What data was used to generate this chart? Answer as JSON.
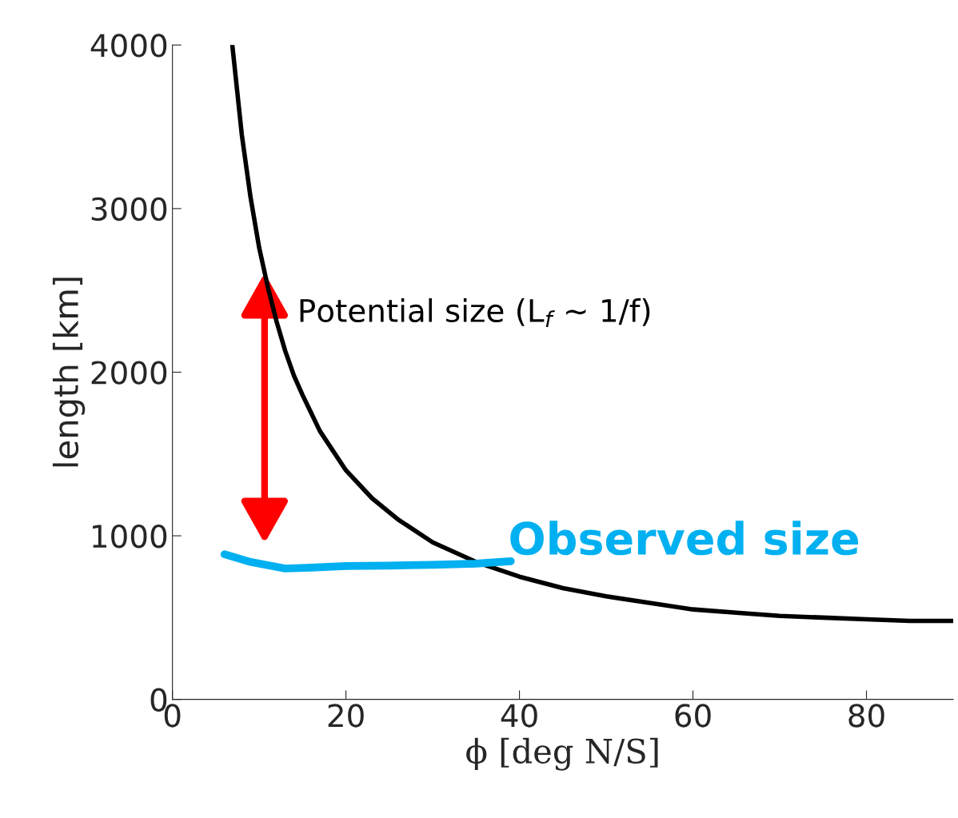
{
  "chart_data": {
    "type": "line",
    "xlabel": "ϕ [deg N/S]",
    "ylabel": "length [km]",
    "xlim": [
      0,
      90
    ],
    "xticks": [
      0,
      20,
      40,
      60,
      80
    ],
    "ylim": [
      0,
      4000
    ],
    "yticks": [
      0,
      1000,
      2000,
      3000,
      4000
    ],
    "grid": false,
    "legend": false,
    "marker": "none",
    "line_style": "solid",
    "series": [
      {
        "name": "Potential size (L$_{f}$ ∼ 1/f)",
        "color": "#000000",
        "x": [
          6.9,
          8,
          9,
          10,
          11,
          12,
          13,
          14,
          15,
          17,
          20,
          23,
          26,
          30,
          35,
          40,
          45,
          50,
          55,
          60,
          65,
          70,
          75,
          80,
          85,
          90
        ],
        "values": [
          4000,
          3450,
          3070,
          2760,
          2520,
          2310,
          2130,
          1980,
          1860,
          1640,
          1400,
          1230,
          1100,
          960,
          840,
          750,
          680,
          630,
          590,
          550,
          530,
          510,
          500,
          490,
          480,
          480
        ]
      },
      {
        "name": "Observed size",
        "color": "#00b0f0",
        "x": [
          6,
          9,
          13,
          16,
          20,
          25,
          30,
          35,
          39
        ],
        "values": [
          887,
          840,
          800,
          805,
          815,
          818,
          822,
          830,
          845
        ]
      }
    ]
  }
}
